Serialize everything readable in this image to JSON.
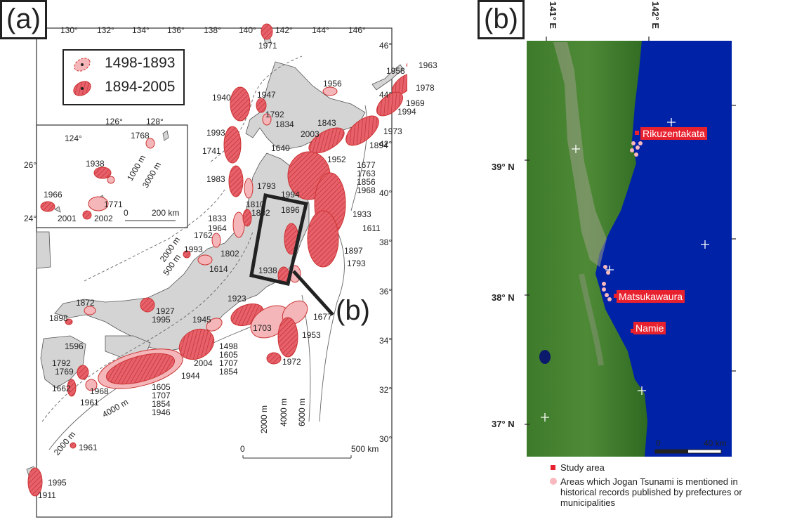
{
  "panel_a": {
    "label": "(a)",
    "legend": [
      {
        "period": "1498-1893",
        "color": "#f4b6b9"
      },
      {
        "period": "1894-2005",
        "color": "#e8606a"
      }
    ],
    "lon_ticks": [
      "130°",
      "132°",
      "134°",
      "136°",
      "138°",
      "140°",
      "142°",
      "144°",
      "146°"
    ],
    "lat_ticks": [
      "46°",
      "44°",
      "42°",
      "40°",
      "38°",
      "36°",
      "34°",
      "32°",
      "30°"
    ],
    "inset": {
      "lon_ticks": [
        "124°",
        "126°",
        "128°"
      ],
      "lat_ticks": [
        "26°",
        "24°"
      ],
      "years": [
        "1768",
        "1938",
        "1966",
        "1771",
        "2001",
        "2002"
      ],
      "depths": [
        "1000 m",
        "3000 m"
      ],
      "scale": [
        "0",
        "200 km"
      ]
    },
    "years": [
      "1971",
      "1958",
      "1963",
      "1978",
      "1969",
      "1994",
      "1973",
      "1956",
      "1947",
      "1940",
      "1792",
      "1834",
      "1843",
      "2003",
      "1894",
      "1993",
      "1741",
      "1640",
      "1952",
      "1677",
      "1763",
      "1856",
      "1968",
      "1983",
      "1793",
      "1994",
      "1810",
      "1802",
      "1833",
      "1964",
      "1762",
      "1802",
      "1993",
      "1614",
      "1896",
      "1933",
      "1611",
      "1897",
      "1793",
      "1938",
      "1923",
      "1703",
      "1677",
      "1953",
      "1972",
      "1872",
      "1927",
      "1995",
      "1898",
      "1945",
      "1596",
      "1498",
      "1605",
      "1707",
      "1854",
      "2004",
      "1944",
      "1792",
      "1769",
      "1662",
      "1968",
      "1961",
      "1605",
      "1707",
      "1854",
      "1946",
      "1961",
      "1995",
      "1911"
    ],
    "depths": [
      "2000 m",
      "500 m",
      "4000 m",
      "2000 m",
      "2000 m",
      "4000 m",
      "6000 m"
    ],
    "scale": [
      "0",
      "500 km"
    ],
    "pointer": "(b)",
    "sea_color": "#ffffff",
    "land_color": "#d4d4d4"
  },
  "panel_b": {
    "label": "(b)",
    "lon_labels": [
      "141° E",
      "142° E"
    ],
    "lat_labels": [
      "39° N",
      "38° N",
      "37° N"
    ],
    "places": [
      "Rikuzentakata",
      "Matsukawaura",
      "Namie"
    ],
    "scale": [
      "0",
      "40 km"
    ],
    "legend": [
      {
        "text": "Study area",
        "color": "#e8212f"
      },
      {
        "text": "Areas which Jogan Tsunami is mentioned in historical records published by prefectures or municipalities",
        "color": "#f7b9bd"
      }
    ],
    "sea_color": "#0022a6",
    "land_color": "#3f7a2c"
  }
}
